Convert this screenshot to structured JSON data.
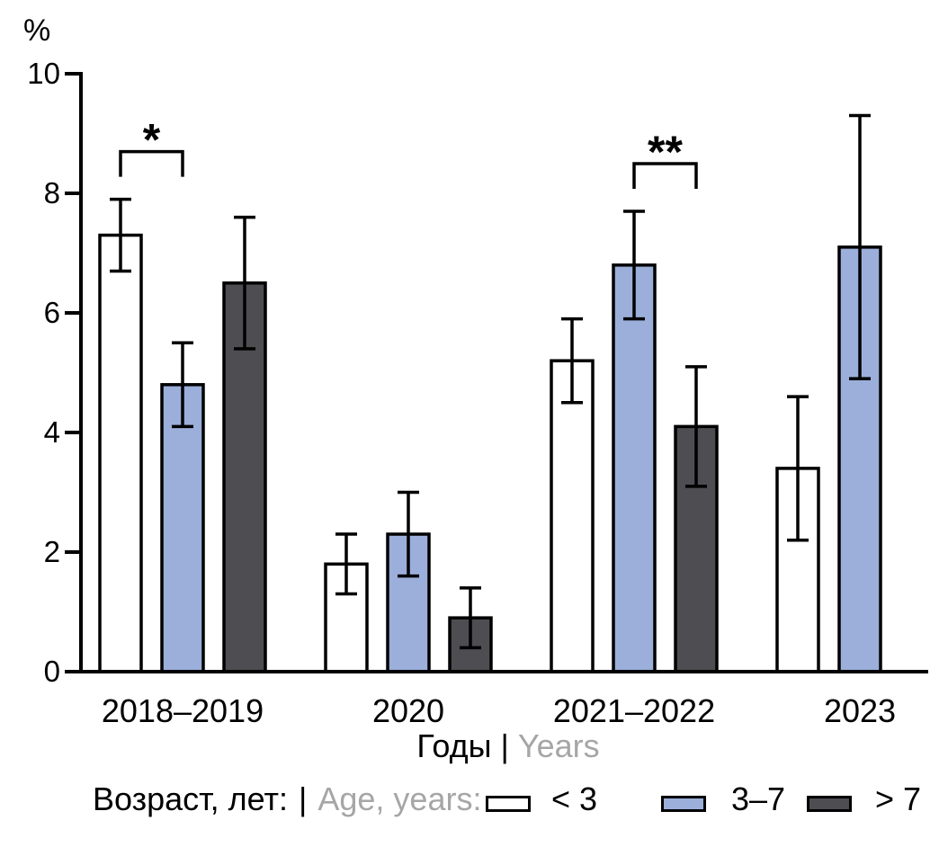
{
  "chart_data": {
    "type": "bar",
    "y_axis_unit_label": "%",
    "categories": [
      "2018–2019",
      "2020",
      "2021–2022",
      "2023"
    ],
    "xlabel": {
      "ru": "Годы",
      "sep": "|",
      "en": "Years"
    },
    "ylim": [
      0,
      10
    ],
    "yticks": [
      0,
      2,
      4,
      6,
      8,
      10
    ],
    "grid": false,
    "legend": {
      "position": "bottom",
      "title": {
        "ru": "Возраст, лет:",
        "sep": "|",
        "en": "Age, years:"
      }
    },
    "series": [
      {
        "name": "< 3",
        "color": "#ffffff",
        "values": [
          7.3,
          1.8,
          5.2,
          3.4
        ],
        "err_low": [
          6.7,
          1.3,
          4.5,
          2.2
        ],
        "err_high": [
          7.9,
          2.3,
          5.9,
          4.6
        ]
      },
      {
        "name": "3–7",
        "color": "#9bafda",
        "values": [
          4.8,
          2.3,
          6.8,
          7.1
        ],
        "err_low": [
          4.1,
          1.6,
          5.9,
          4.9
        ],
        "err_high": [
          5.5,
          3.0,
          7.7,
          9.3
        ]
      },
      {
        "name": "> 7",
        "color": "#4d4d52",
        "values": [
          6.5,
          0.9,
          4.1,
          null
        ],
        "err_low": [
          5.4,
          0.4,
          3.1,
          null
        ],
        "err_high": [
          7.6,
          1.4,
          5.1,
          null
        ]
      }
    ],
    "significance": [
      {
        "category": "2018–2019",
        "group_index": 0,
        "between_series": [
          0,
          1
        ],
        "label": "*"
      },
      {
        "category": "2021–2022",
        "group_index": 2,
        "between_series": [
          1,
          2
        ],
        "label": "**"
      }
    ],
    "colors": {
      "axis": "#000000",
      "muted_text": "#a6a6a6"
    }
  }
}
